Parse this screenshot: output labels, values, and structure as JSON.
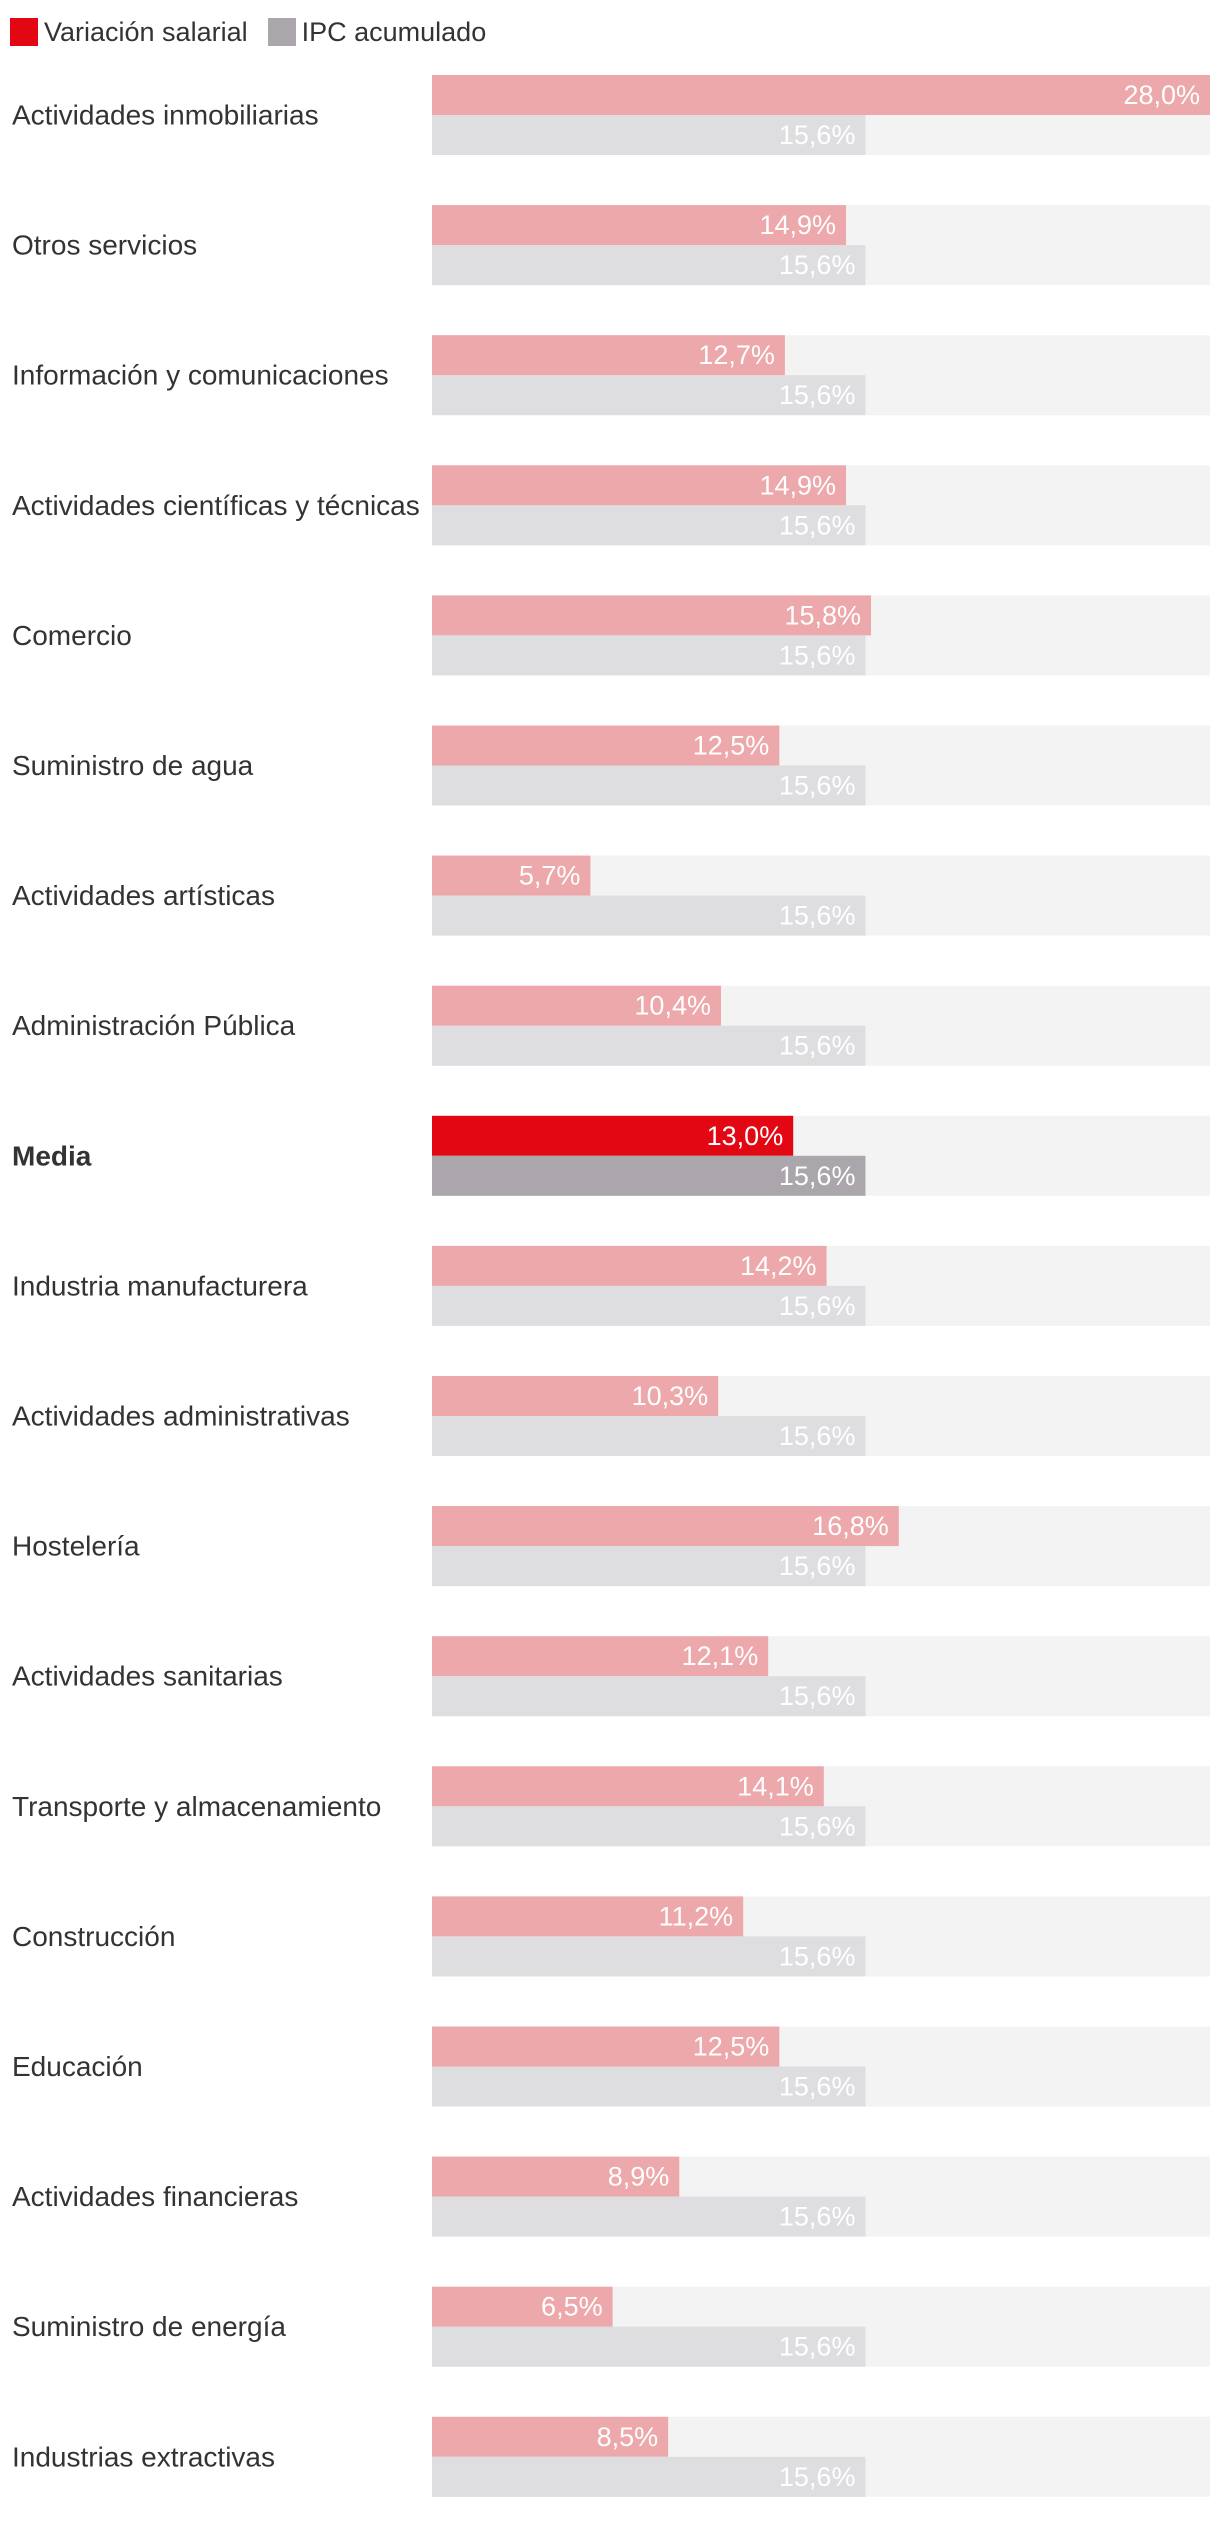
{
  "chart_data": {
    "type": "bar",
    "orientation": "horizontal",
    "categories": [
      "Actividades inmobiliarias",
      "Otros servicios",
      "Información y comunicaciones",
      "Actividades científicas y técnicas",
      "Comercio",
      "Suministro de agua",
      "Actividades artísticas",
      "Administración Pública",
      "Media",
      "Industria manufacturera",
      "Actividades administrativas",
      "Hostelería",
      "Actividades sanitarias",
      "Transporte y almacenamiento",
      "Construcción",
      "Educación",
      "Actividades financieras",
      "Suministro de energía",
      "Industrias extractivas"
    ],
    "highlight_category": "Media",
    "series": [
      {
        "name": "Variación salarial",
        "values": [
          28.0,
          14.9,
          12.7,
          14.9,
          15.8,
          12.5,
          5.7,
          10.4,
          13.0,
          14.2,
          10.3,
          16.8,
          12.1,
          14.1,
          11.2,
          12.5,
          8.9,
          6.5,
          8.5
        ],
        "labels": [
          "28,0%",
          "14,9%",
          "12,7%",
          "14,9%",
          "15,8%",
          "12,5%",
          "5,7%",
          "10,4%",
          "13,0%",
          "14,2%",
          "10,3%",
          "16,8%",
          "12,1%",
          "14,1%",
          "11,2%",
          "12,5%",
          "8,9%",
          "6,5%",
          "8,5%"
        ],
        "color": "#e30613",
        "muted_color": "#eca8aa"
      },
      {
        "name": "IPC acumulado",
        "values": [
          15.6,
          15.6,
          15.6,
          15.6,
          15.6,
          15.6,
          15.6,
          15.6,
          15.6,
          15.6,
          15.6,
          15.6,
          15.6,
          15.6,
          15.6,
          15.6,
          15.6,
          15.6,
          15.6
        ],
        "labels": [
          "15,6%",
          "15,6%",
          "15,6%",
          "15,6%",
          "15,6%",
          "15,6%",
          "15,6%",
          "15,6%",
          "15,6%",
          "15,6%",
          "15,6%",
          "15,6%",
          "15,6%",
          "15,6%",
          "15,6%",
          "15,6%",
          "15,6%",
          "15,6%",
          "15,6%"
        ],
        "color": "#aaa6ac",
        "muted_color": "#dedde0"
      }
    ],
    "xlim": [
      0,
      28
    ],
    "track_color": "#f3f3f3",
    "grid": false,
    "legend_position": "top-left"
  }
}
